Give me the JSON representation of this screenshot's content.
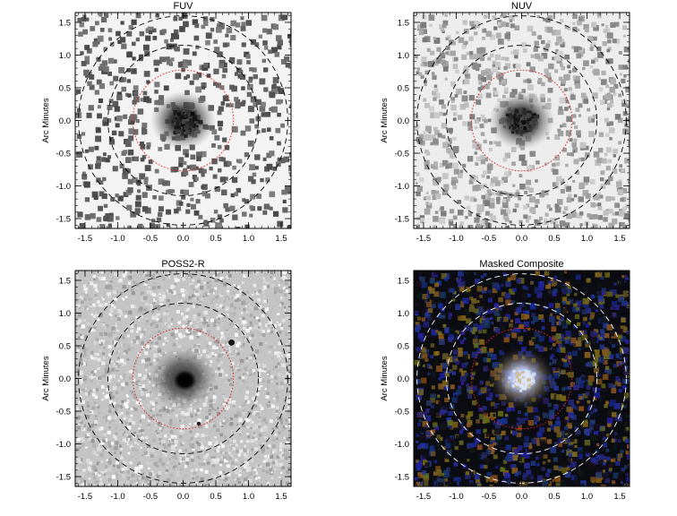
{
  "panels": [
    {
      "id": "fuv",
      "title": "FUV",
      "ylabel": "Arc Minutes",
      "style": "fuv",
      "ring_colors": {
        "outer": "#000000",
        "aperture": "#e02020"
      }
    },
    {
      "id": "nuv",
      "title": "NUV",
      "ylabel": "Arc Minutes",
      "style": "nuv",
      "ring_colors": {
        "outer": "#000000",
        "aperture": "#e02020"
      }
    },
    {
      "id": "poss2r",
      "title": "POSS2-R",
      "ylabel": "Arc Minutes",
      "style": "poss",
      "ring_colors": {
        "outer": "#000000",
        "aperture": "#e02020"
      }
    },
    {
      "id": "composite",
      "title": "Masked Composite",
      "ylabel": "Arc Minutes",
      "style": "composite",
      "ring_colors": {
        "outer": "#ffffff",
        "aperture": "#e02020"
      }
    }
  ],
  "axes": {
    "xlim": [
      -1.65,
      1.65
    ],
    "ylim": [
      -1.65,
      1.65
    ],
    "x_ticks": [
      "-1.5",
      "-1.0",
      "-0.5",
      "0.0",
      "0.5",
      "1.0",
      "1.5"
    ],
    "y_ticks": [
      "-1.5",
      "-1.0",
      "-0.5",
      "0.0",
      "0.5",
      "1.0",
      "1.5"
    ],
    "tick_values": [
      -1.5,
      -1.0,
      -0.5,
      0.0,
      0.5,
      1.0,
      1.5
    ]
  },
  "rings_arcmin": {
    "outer": 1.6,
    "middle": 1.15,
    "aperture": 0.77
  }
}
